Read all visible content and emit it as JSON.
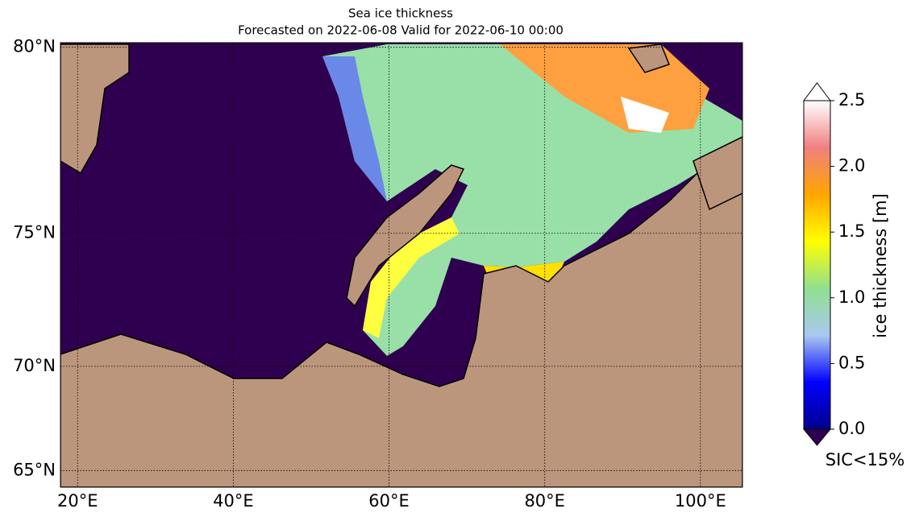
{
  "chart_data": {
    "type": "map",
    "title": "Sea ice thickness",
    "subtitle": "Forecasted on 2022-06-08   Valid for 2022-06-10 00:00",
    "projection": "mercator",
    "xlim": [
      17.8,
      105.4
    ],
    "ylim": [
      64.1,
      80.1
    ],
    "xticks": [
      {
        "value": 20,
        "label": "20°E"
      },
      {
        "value": 40,
        "label": "40°E"
      },
      {
        "value": 60,
        "label": "60°E"
      },
      {
        "value": 80,
        "label": "80°E"
      },
      {
        "value": 100,
        "label": "100°E"
      }
    ],
    "yticks": [
      {
        "value": 65,
        "label": "65°N"
      },
      {
        "value": 70,
        "label": "70°N"
      },
      {
        "value": 75,
        "label": "75°N"
      },
      {
        "value": 80,
        "label": "80°N"
      }
    ],
    "grid": true,
    "colorbar": {
      "label": "ice thickness [m]",
      "lim": [
        0,
        2.5
      ],
      "ticks": [
        {
          "value": 0,
          "label": "0.0"
        },
        {
          "value": 0.5,
          "label": "0.5"
        },
        {
          "value": 1,
          "label": "1.0"
        },
        {
          "value": 1.5,
          "label": "1.5"
        },
        {
          "value": 2,
          "label": "2.0"
        },
        {
          "value": 2.5,
          "label": "2.5"
        }
      ],
      "colors": [
        "#00008b",
        "#0000ff",
        "#aac8f0",
        "#90e090",
        "#ffff00",
        "#ffa500",
        "#f08080",
        "#ffffff"
      ],
      "under_color": "#300050",
      "over_color": "#ffffff",
      "under_label": "SIC<15%"
    }
  }
}
